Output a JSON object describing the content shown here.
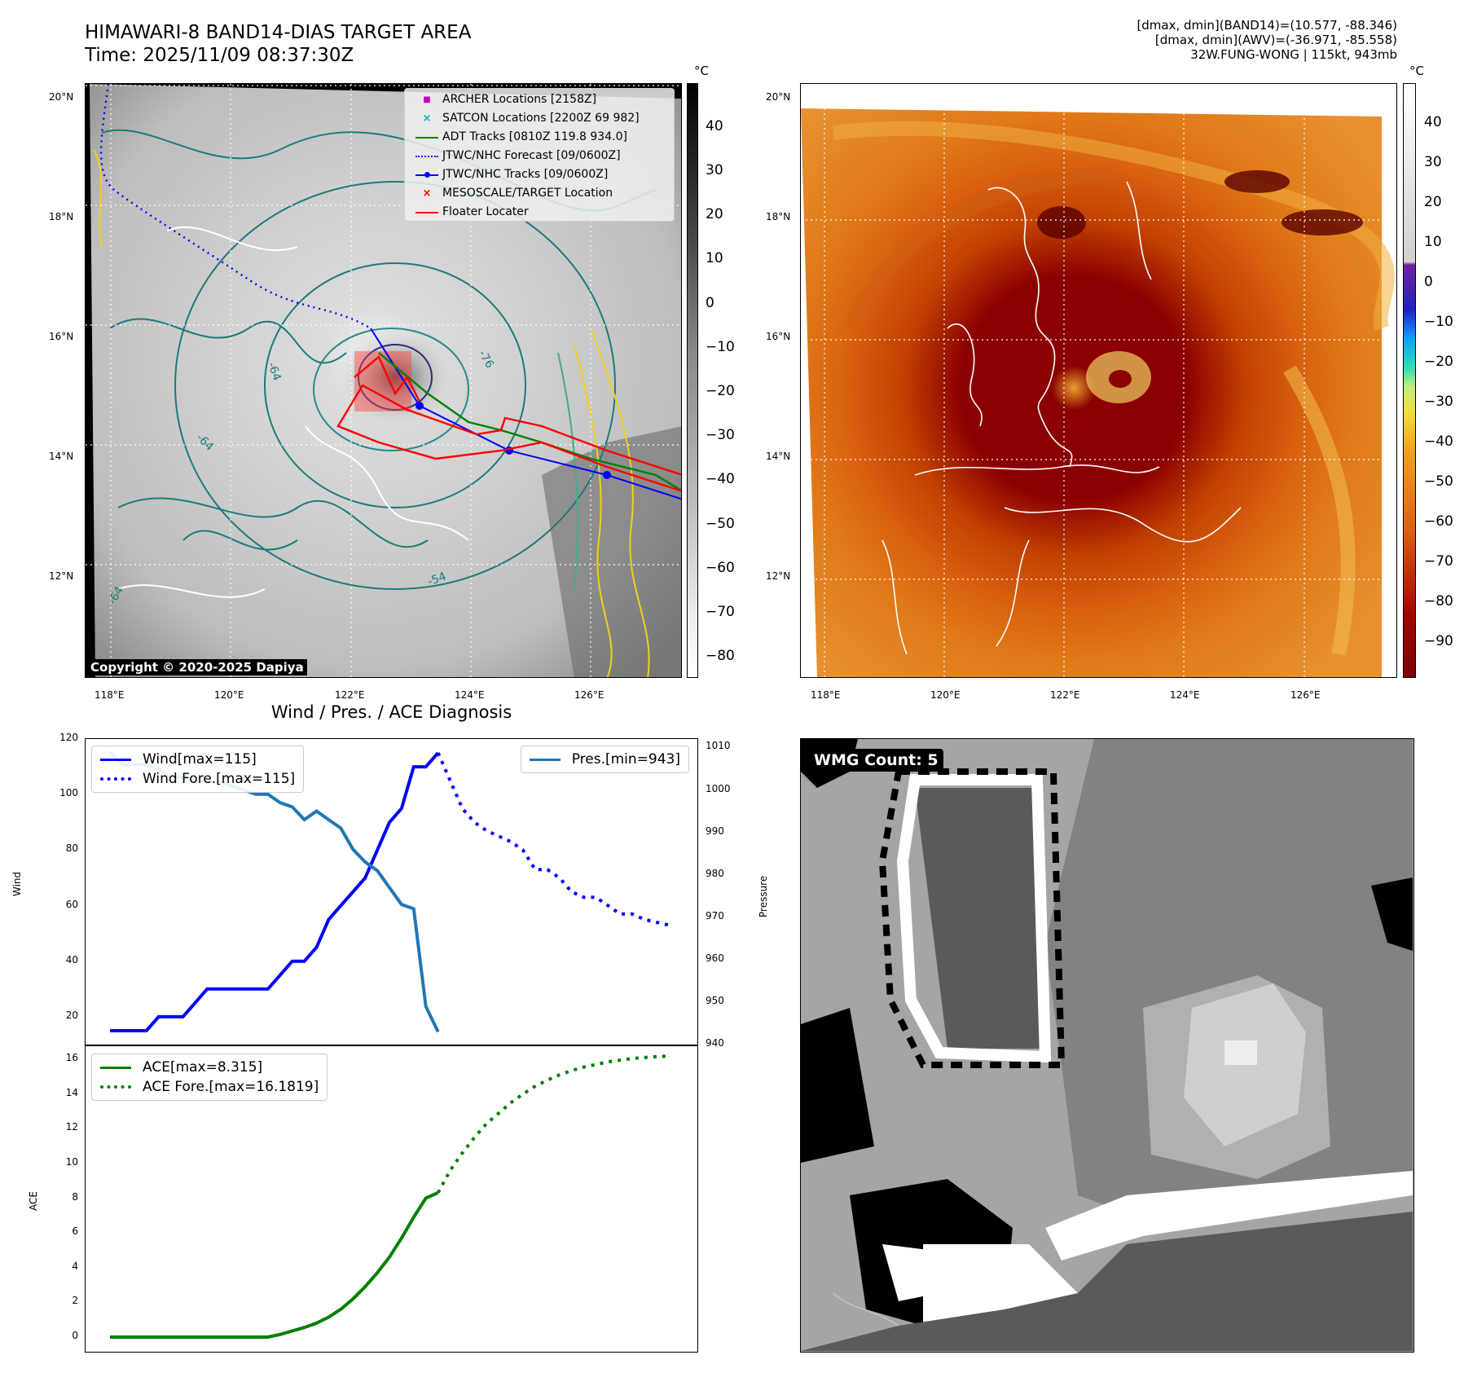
{
  "header": {
    "title_line1": "HIMAWARI-8 BAND14-DIAS TARGET AREA",
    "title_line2": "Time: 2025/11/09 08:37:30Z",
    "info_line1": "[dmax, dmin](BAND14)=(10.577, -88.346)",
    "info_line2": "[dmax, dmin](AWV)=(-36.971, -85.558)",
    "info_line3": "32W.FUNG-WONG | 115kt, 943mb"
  },
  "map": {
    "lat_labels": [
      "20°N",
      "18°N",
      "16°N",
      "14°N",
      "12°N"
    ],
    "lon_labels": [
      "118°E",
      "120°E",
      "122°E",
      "124°E",
      "126°E"
    ],
    "copyright": "Copyright © 2020-2025 Dapiya",
    "legend": [
      {
        "label": "ARCHER Locations [2158Z]",
        "color": "#c000c0",
        "marker": "square"
      },
      {
        "label": "SATCON Locations [2200Z 69 982]",
        "color": "#00b0b0",
        "marker": "x"
      },
      {
        "label": "ADT Tracks [0810Z 119.8 934.0]",
        "color": "#008000",
        "marker": "line"
      },
      {
        "label": "JTWC/NHC Forecast [09/0600Z]",
        "color": "#0000ff",
        "marker": "dotted"
      },
      {
        "label": "JTWC/NHC Tracks [09/0600Z]",
        "color": "#0000ff",
        "marker": "line-dot"
      },
      {
        "label": "MESOSCALE/TARGET Location",
        "color": "#ff0000",
        "marker": "x"
      },
      {
        "label": "Floater Locater",
        "color": "#ff0000",
        "marker": "line"
      }
    ],
    "contour_labels": [
      "-64",
      "-76",
      "-64",
      "-54",
      "-64"
    ],
    "cb1_unit": "°C",
    "cb1_ticks": [
      "40",
      "30",
      "20",
      "10",
      "0",
      "−10",
      "−20",
      "−30",
      "−40",
      "−50",
      "−60",
      "−70",
      "−80"
    ],
    "cb2_unit": "°C",
    "cb2_ticks": [
      "40",
      "30",
      "20",
      "10",
      "0",
      "−10",
      "−20",
      "−30",
      "−40",
      "−50",
      "−60",
      "−70",
      "−80",
      "−90"
    ]
  },
  "wmg": {
    "label": "WMG Count: 5"
  },
  "chart_data": [
    {
      "type": "line",
      "title": "Wind / Pres. / ACE Diagnosis",
      "ylabel": "Wind",
      "ylabel_right": "Pressure",
      "ylim": [
        10,
        120
      ],
      "ylim_right": [
        940,
        1012
      ],
      "yticks": [
        "120",
        "100",
        "80",
        "60",
        "40",
        "20"
      ],
      "yticks_right": [
        "1010",
        "1000",
        "990",
        "980",
        "970",
        "960",
        "950",
        "940"
      ],
      "legend_left": [
        "Wind[max=115]",
        "Wind Fore.[max=115]"
      ],
      "legend_right": [
        "Pres.[min=943]"
      ],
      "series": [
        {
          "name": "Wind[max=115]",
          "axis": "left",
          "color": "#0000ff",
          "style": "solid",
          "x": [
            0,
            1,
            2,
            3,
            4,
            5,
            6,
            7,
            8,
            9,
            10,
            11,
            12,
            13,
            14,
            15,
            16,
            17,
            18,
            19,
            20,
            21,
            22,
            23,
            24,
            25,
            26,
            27
          ],
          "values": [
            15,
            15,
            15,
            15,
            20,
            20,
            20,
            25,
            30,
            30,
            30,
            30,
            30,
            30,
            35,
            40,
            40,
            45,
            55,
            60,
            65,
            70,
            80,
            90,
            95,
            110,
            110,
            115
          ]
        },
        {
          "name": "Wind Fore.[max=115]",
          "axis": "left",
          "color": "#0000ff",
          "style": "dotted",
          "x": [
            27,
            28,
            29,
            30,
            31,
            32,
            33,
            34,
            35,
            36,
            37,
            38,
            39,
            40,
            41,
            42,
            43,
            44,
            45,
            46
          ],
          "values": [
            115,
            105,
            95,
            90,
            87,
            85,
            83,
            80,
            73,
            73,
            70,
            65,
            63,
            63,
            60,
            57,
            57,
            55,
            54,
            53
          ]
        },
        {
          "name": "Pres.[min=943]",
          "axis": "right",
          "color": "#1f77b4",
          "style": "solid",
          "x": [
            0,
            1,
            2,
            3,
            4,
            5,
            6,
            7,
            8,
            9,
            10,
            11,
            12,
            13,
            14,
            15,
            16,
            17,
            18,
            19,
            20,
            21,
            22,
            23,
            24,
            25,
            26,
            27
          ],
          "values": [
            1009,
            1006,
            1006,
            1006,
            1005,
            1003,
            1003,
            1002,
            1002,
            1002,
            1001,
            1000,
            999,
            999,
            997,
            996,
            993,
            995,
            993,
            991,
            986,
            983,
            981,
            977,
            973,
            972,
            949,
            943
          ]
        }
      ]
    },
    {
      "type": "line",
      "ylabel": "ACE",
      "ylim": [
        -0.8,
        16.8
      ],
      "yticks": [
        "16",
        "14",
        "12",
        "10",
        "8",
        "6",
        "4",
        "2",
        "0"
      ],
      "legend": [
        "ACE[max=8.315]",
        "ACE Fore.[max=16.1819]"
      ],
      "series": [
        {
          "name": "ACE[max=8.315]",
          "color": "#008000",
          "style": "solid",
          "x": [
            0,
            1,
            2,
            3,
            4,
            5,
            6,
            7,
            8,
            9,
            10,
            11,
            12,
            13,
            14,
            15,
            16,
            17,
            18,
            19,
            20,
            21,
            22,
            23,
            24,
            25,
            26,
            27
          ],
          "values": [
            0,
            0,
            0,
            0,
            0,
            0,
            0,
            0,
            0,
            0,
            0,
            0,
            0,
            0,
            0.15,
            0.35,
            0.55,
            0.8,
            1.15,
            1.6,
            2.2,
            2.9,
            3.7,
            4.6,
            5.7,
            6.9,
            8.0,
            8.315
          ]
        },
        {
          "name": "ACE Fore.[max=16.1819]",
          "color": "#008000",
          "style": "dotted",
          "x": [
            27,
            28,
            29,
            30,
            31,
            32,
            33,
            34,
            35,
            36,
            37,
            38,
            39,
            40,
            41,
            42,
            43,
            44,
            45,
            46
          ],
          "values": [
            8.315,
            9.6,
            10.6,
            11.5,
            12.3,
            12.9,
            13.5,
            14.0,
            14.45,
            14.8,
            15.1,
            15.35,
            15.55,
            15.7,
            15.85,
            15.95,
            16.05,
            16.1,
            16.15,
            16.18
          ]
        }
      ]
    }
  ]
}
